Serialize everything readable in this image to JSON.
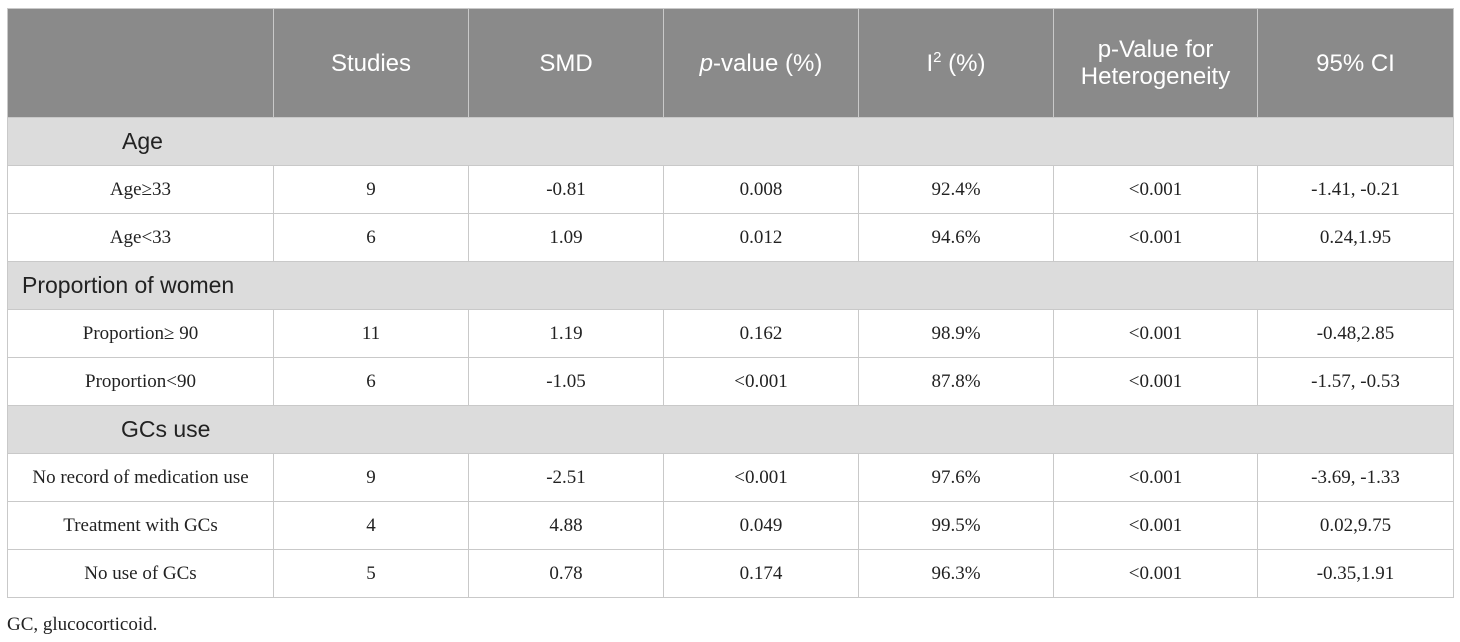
{
  "table": {
    "header": {
      "col0": "",
      "studies": "Studies",
      "smd": "SMD",
      "pvalue_p": "p",
      "pvalue_rest": "-value (%)",
      "i2_base": "I",
      "i2_sup": "2",
      "i2_rest": " (%)",
      "heterogeneity": "p-Value for Heterogeneity",
      "ci": "95% CI"
    },
    "groups": [
      {
        "label": "Age",
        "rows": [
          {
            "label": "Age≥33",
            "studies": "9",
            "smd": "-0.81",
            "p": "0.008",
            "i2": "92.4%",
            "ph": "<0.001",
            "ci": "-1.41, -0.21"
          },
          {
            "label": "Age<33",
            "studies": "6",
            "smd": "1.09",
            "p": "0.012",
            "i2": "94.6%",
            "ph": "<0.001",
            "ci": "0.24,1.95"
          }
        ]
      },
      {
        "label": "Proportion of women",
        "rows": [
          {
            "label": "Proportion≥ 90",
            "studies": "11",
            "smd": "1.19",
            "p": "0.162",
            "i2": "98.9%",
            "ph": "<0.001",
            "ci": "-0.48,2.85"
          },
          {
            "label": "Proportion<90",
            "studies": "6",
            "smd": "-1.05",
            "p": "<0.001",
            "i2": "87.8%",
            "ph": "<0.001",
            "ci": "-1.57, -0.53"
          }
        ]
      },
      {
        "label": "GCs use",
        "rows": [
          {
            "label": "No record of medication use",
            "studies": "9",
            "smd": "-2.51",
            "p": "<0.001",
            "i2": "97.6%",
            "ph": "<0.001",
            "ci": "-3.69, -1.33"
          },
          {
            "label": "Treatment with GCs",
            "studies": "4",
            "smd": "4.88",
            "p": "0.049",
            "i2": "99.5%",
            "ph": "<0.001",
            "ci": "0.02,9.75"
          },
          {
            "label": "No use of GCs",
            "studies": "5",
            "smd": "0.78",
            "p": "0.174",
            "i2": "96.3%",
            "ph": "<0.001",
            "ci": "-0.35,1.91"
          }
        ]
      }
    ]
  },
  "footnote": "GC, glucocorticoid.",
  "colors": {
    "header_bg": "#8a8a8a",
    "group_bg": "#dcdcdc",
    "border": "#c9c9c9"
  }
}
